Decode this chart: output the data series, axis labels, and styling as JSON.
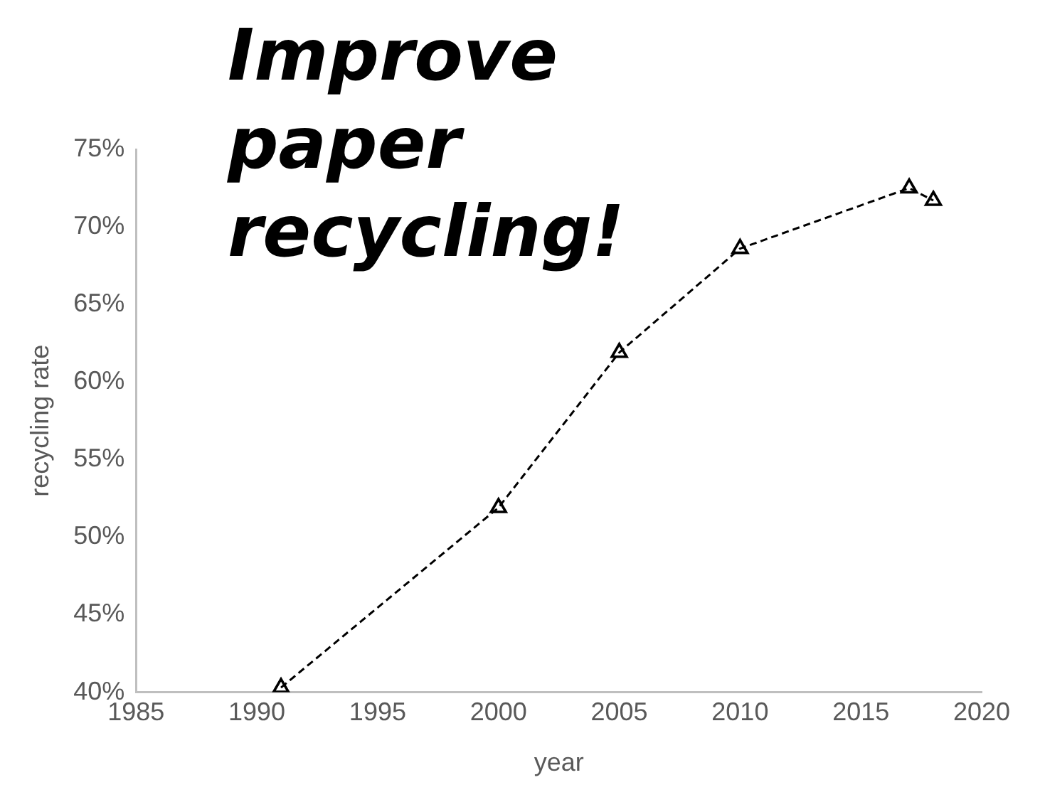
{
  "chart_data": {
    "type": "line",
    "title": "Improve paper recycling!",
    "xlabel": "year",
    "ylabel": "recycling rate",
    "x": [
      1991,
      2000,
      2005,
      2010,
      2017,
      2018
    ],
    "series": [
      {
        "color": "#000000",
        "values": [
          40.3,
          51.9,
          61.9,
          68.6,
          72.5,
          71.7
        ]
      }
    ],
    "xlim": [
      1985,
      2020
    ],
    "xticks": [
      1985,
      1990,
      1995,
      2000,
      2005,
      2010,
      2015,
      2020
    ],
    "ylim": [
      40,
      75
    ],
    "yticks": [
      {
        "value": 40,
        "label": "40%"
      },
      {
        "value": 45,
        "label": "45%"
      },
      {
        "value": 50,
        "label": "50%"
      },
      {
        "value": 55,
        "label": "55%"
      },
      {
        "value": 60,
        "label": "60%"
      },
      {
        "value": 65,
        "label": "65%"
      },
      {
        "value": 70,
        "label": "70%"
      },
      {
        "value": 75,
        "label": "75%"
      }
    ],
    "grid": false,
    "legend": false,
    "marker": "triangle",
    "line_style": "dashed"
  }
}
